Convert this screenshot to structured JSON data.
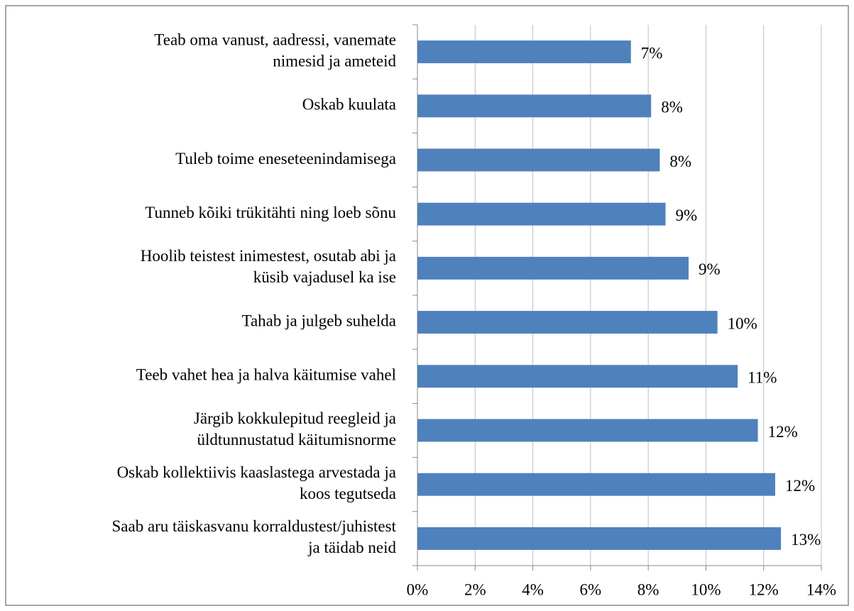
{
  "chart_data": {
    "type": "bar",
    "orientation": "horizontal",
    "categories": [
      [
        "Teab oma vanust, aadressi, vanemate",
        "nimesid ja ameteid"
      ],
      [
        "Oskab kuulata"
      ],
      [
        "Tuleb toime eneseteenindamisega"
      ],
      [
        "Tunneb kõiki trükitähti ning loeb sõnu"
      ],
      [
        "Hoolib teistest inimestest, osutab abi ja",
        "küsib vajadusel ka ise"
      ],
      [
        "Tahab ja julgeb suhelda"
      ],
      [
        "Teeb vahet hea ja halva käitumise vahel"
      ],
      [
        "Järgib kokkulepitud reegleid ja",
        "üldtunnustatud käitumisnorme"
      ],
      [
        "Oskab kollektiivis kaaslastega arvestada ja",
        "koos tegutseda"
      ],
      [
        "Saab aru täiskasvanu korraldustest/juhistest",
        "ja täidab neid"
      ]
    ],
    "values": [
      7.4,
      8.1,
      8.4,
      8.6,
      9.4,
      10.4,
      11.1,
      11.8,
      12.4,
      12.6
    ],
    "value_labels": [
      "7%",
      "8%",
      "8%",
      "9%",
      "9%",
      "10%",
      "11%",
      "12%",
      "12%",
      "13%"
    ],
    "color": "#4f81bd",
    "xlim": [
      0,
      14
    ],
    "xticks": [
      {
        "value": 0,
        "label": "0%"
      },
      {
        "value": 2,
        "label": "2%"
      },
      {
        "value": 4,
        "label": "4%"
      },
      {
        "value": 6,
        "label": "6%"
      },
      {
        "value": 8,
        "label": "8%"
      },
      {
        "value": 10,
        "label": "10%"
      },
      {
        "value": 12,
        "label": "12%"
      },
      {
        "value": 14,
        "label": "14%"
      }
    ],
    "grid": true
  }
}
